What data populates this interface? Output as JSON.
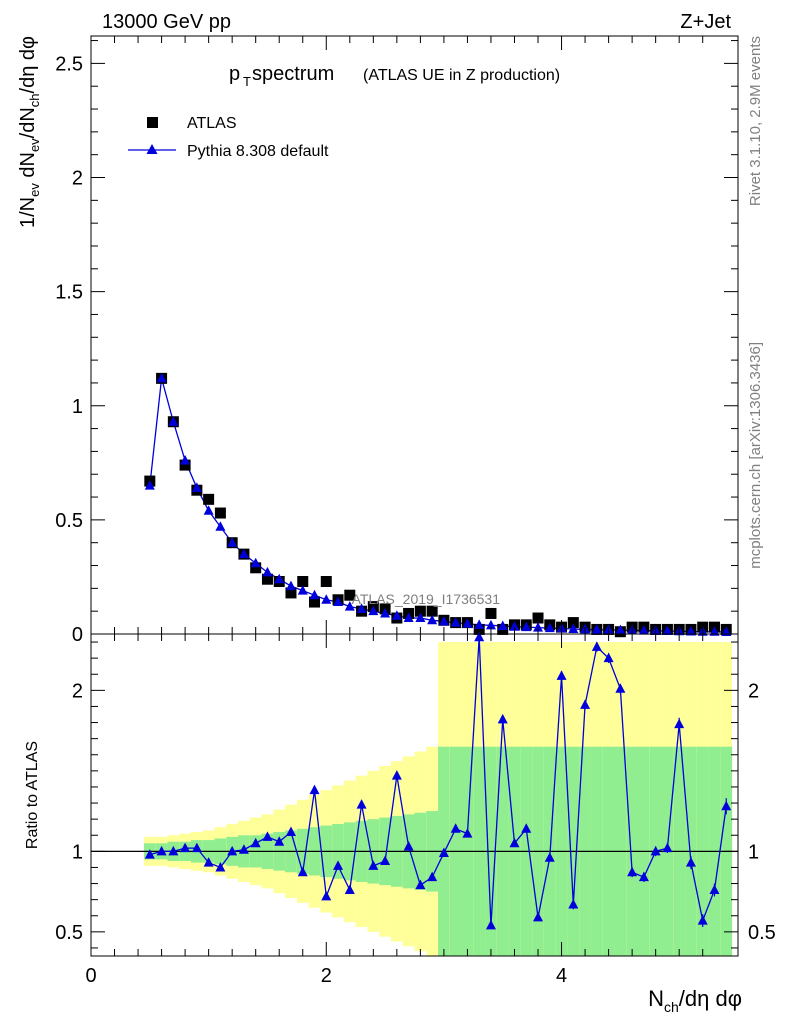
{
  "header": {
    "energy_label": "13000 GeV pp",
    "process_label": "Z+Jet"
  },
  "side_labels": {
    "rivet": "Rivet 3.1.10,  2.9M events",
    "mcplots": "mcplots.cern.ch [arXiv:1306.3436]"
  },
  "chart_data": [
    {
      "type": "scatter",
      "title_main": "p",
      "title_sub": "T",
      "title_rest": " spectrum",
      "title_extra": "(ATLAS UE in Z production)",
      "ylabel": "1/N_ev dN_ev/dN_ch/dη dφ",
      "watermark": "ATLAS_2019_I1736531",
      "xlim": [
        0,
        5.5
      ],
      "ylim": [
        0,
        2.62
      ],
      "yticks": [
        0,
        0.5,
        1,
        1.5,
        2,
        2.5
      ],
      "ytick_labels": [
        "0",
        "0.5",
        "1",
        "1.5",
        "2",
        "2.5"
      ],
      "legend_position": "top-left",
      "x": [
        0.5,
        0.6,
        0.7,
        0.8,
        0.9,
        1.0,
        1.1,
        1.2,
        1.3,
        1.4,
        1.5,
        1.6,
        1.7,
        1.8,
        1.9,
        2.0,
        2.1,
        2.2,
        2.3,
        2.4,
        2.5,
        2.6,
        2.7,
        2.8,
        2.9,
        3.0,
        3.1,
        3.2,
        3.3,
        3.4,
        3.5,
        3.6,
        3.7,
        3.8,
        3.9,
        4.0,
        4.1,
        4.2,
        4.3,
        4.4,
        4.5,
        4.6,
        4.7,
        4.8,
        4.9,
        5.0,
        5.1,
        5.2,
        5.3,
        5.4
      ],
      "series": [
        {
          "name": "ATLAS",
          "color": "#000000",
          "marker": "square",
          "values": [
            0.67,
            1.12,
            0.93,
            0.74,
            0.63,
            0.59,
            0.53,
            0.4,
            0.35,
            0.29,
            0.24,
            0.23,
            0.18,
            0.23,
            0.14,
            0.23,
            0.15,
            0.17,
            0.1,
            0.12,
            0.11,
            0.07,
            0.09,
            0.1,
            0.1,
            0.06,
            0.05,
            0.05,
            0.02,
            0.09,
            0.02,
            0.04,
            0.04,
            0.07,
            0.04,
            0.03,
            0.05,
            0.03,
            0.02,
            0.02,
            0.01,
            0.03,
            0.03,
            0.02,
            0.02,
            0.02,
            0.02,
            0.03,
            0.03,
            0.02
          ]
        },
        {
          "name": "Pythia 8.308 default",
          "color": "#0000dd",
          "marker": "triangle",
          "values": [
            0.65,
            1.12,
            0.93,
            0.76,
            0.64,
            0.54,
            0.47,
            0.4,
            0.35,
            0.31,
            0.27,
            0.24,
            0.21,
            0.19,
            0.17,
            0.15,
            0.14,
            0.12,
            0.11,
            0.1,
            0.09,
            0.08,
            0.07,
            0.07,
            0.06,
            0.055,
            0.05,
            0.045,
            0.04,
            0.038,
            0.035,
            0.032,
            0.03,
            0.028,
            0.026,
            0.024,
            0.022,
            0.02,
            0.019,
            0.018,
            0.017,
            0.016,
            0.015,
            0.014,
            0.013,
            0.012,
            0.011,
            0.01,
            0.01,
            0.009
          ]
        }
      ]
    },
    {
      "type": "line",
      "ylabel": "Ratio to ATLAS",
      "xlabel": "N_ch/dη dφ",
      "xlim": [
        0,
        5.5
      ],
      "ylim": [
        0.35,
        2.35
      ],
      "yticks": [
        0.5,
        1,
        2
      ],
      "ytick_labels": [
        "0.5",
        "1",
        "2"
      ],
      "xticks": [
        0,
        2,
        4
      ],
      "xtick_labels": [
        "0",
        "2",
        "4"
      ],
      "reference_line": 1,
      "x": [
        0.5,
        0.6,
        0.7,
        0.8,
        0.9,
        1.0,
        1.1,
        1.2,
        1.3,
        1.4,
        1.5,
        1.6,
        1.7,
        1.8,
        1.9,
        2.0,
        2.1,
        2.2,
        2.3,
        2.4,
        2.5,
        2.6,
        2.7,
        2.8,
        2.9,
        3.0,
        3.1,
        3.2,
        3.3,
        3.4,
        3.5,
        3.6,
        3.7,
        3.8,
        3.9,
        4.0,
        4.1,
        4.2,
        4.3,
        4.4,
        4.5,
        4.6,
        4.7,
        4.8,
        4.9,
        5.0,
        5.1,
        5.2,
        5.3,
        5.4
      ],
      "ratio": [
        0.98,
        1.0,
        1.0,
        1.02,
        1.02,
        0.93,
        0.9,
        1.0,
        1.01,
        1.05,
        1.09,
        1.06,
        1.12,
        0.87,
        1.38,
        0.72,
        0.91,
        0.76,
        1.29,
        0.91,
        0.94,
        1.47,
        1.03,
        0.79,
        0.84,
        0.99,
        1.14,
        1.11,
        2.33,
        0.54,
        1.82,
        1.05,
        1.14,
        0.59,
        0.96,
        2.09,
        0.67,
        1.91,
        2.27,
        2.2,
        2.01,
        0.87,
        0.84,
        1.0,
        1.02,
        1.79,
        0.93,
        0.57,
        0.76,
        1.28
      ],
      "ratio_err": [
        0.02,
        0.02,
        0.02,
        0.02,
        0.02,
        0.02,
        0.02,
        0.02,
        0.02,
        0.02,
        0.02,
        0.02,
        0.02,
        0.02,
        0.02,
        0.02,
        0.02,
        0.02,
        0.02,
        0.02,
        0.02,
        0.02,
        0.02,
        0.02,
        0.02,
        0.02,
        0.02,
        0.02,
        0.02,
        0.02,
        0.02,
        0.02,
        0.02,
        0.02,
        0.02,
        0.03,
        0.03,
        0.03,
        0.03,
        0.03,
        0.03,
        0.03,
        0.03,
        0.03,
        0.03,
        0.04,
        0.04,
        0.04,
        0.04,
        0.05
      ],
      "band_inner": [
        0.05,
        0.05,
        0.06,
        0.06,
        0.07,
        0.07,
        0.08,
        0.09,
        0.1,
        0.1,
        0.11,
        0.12,
        0.13,
        0.14,
        0.15,
        0.16,
        0.17,
        0.18,
        0.19,
        0.2,
        0.21,
        0.22,
        0.23,
        0.24,
        0.25,
        0.65,
        0.65,
        0.65,
        0.65,
        0.65,
        0.65,
        0.65,
        0.65,
        0.65,
        0.65,
        0.65,
        0.65,
        0.65,
        0.65,
        0.65,
        0.65,
        0.65,
        0.65,
        0.65,
        0.65,
        0.65,
        0.65,
        0.65,
        0.65,
        0.65
      ],
      "band_outer": [
        0.09,
        0.09,
        0.1,
        0.11,
        0.12,
        0.13,
        0.15,
        0.17,
        0.19,
        0.21,
        0.23,
        0.26,
        0.29,
        0.32,
        0.35,
        0.38,
        0.41,
        0.44,
        0.47,
        0.5,
        0.53,
        0.56,
        0.59,
        0.62,
        0.65,
        1.3,
        1.3,
        1.3,
        1.3,
        1.3,
        1.3,
        1.3,
        1.3,
        1.3,
        1.3,
        1.3,
        1.3,
        1.3,
        1.3,
        1.3,
        1.3,
        1.3,
        1.3,
        1.3,
        1.3,
        1.3,
        1.3,
        1.3,
        1.3,
        1.3
      ],
      "band_colors": {
        "inner": "#90ee90",
        "outer": "#ffff99"
      }
    }
  ]
}
